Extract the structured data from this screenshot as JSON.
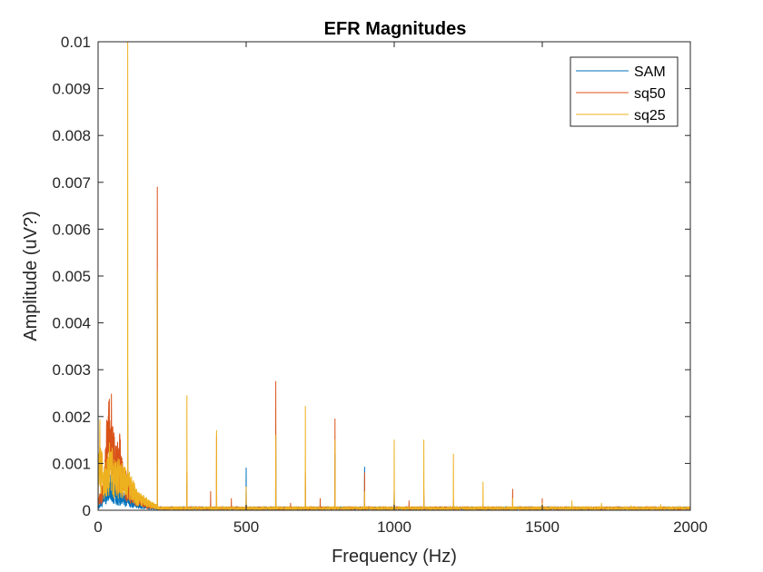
{
  "chart_data": {
    "type": "line",
    "title": "EFR Magnitudes",
    "xlabel": "Frequency (Hz)",
    "ylabel": "Amplitude (uV?)",
    "xlim": [
      0,
      2000
    ],
    "ylim": [
      0,
      0.01
    ],
    "xticks": [
      0,
      500,
      1000,
      1500,
      2000
    ],
    "xtick_labels": [
      "0",
      "500",
      "1000",
      "1500",
      "2000"
    ],
    "yticks": [
      0,
      0.001,
      0.002,
      0.003,
      0.004,
      0.005,
      0.006,
      0.007,
      0.008,
      0.009,
      0.01
    ],
    "ytick_labels": [
      "0",
      "0.001",
      "0.002",
      "0.003",
      "0.004",
      "0.005",
      "0.006",
      "0.007",
      "0.008",
      "0.009",
      "0.01"
    ],
    "grid": false,
    "legend": "top-right",
    "noise_floor": 5e-05,
    "series": [
      {
        "name": "SAM",
        "color": "#0072BD",
        "low_freq_envelope": [
          [
            0,
            0.0001
          ],
          [
            10,
            0.0002
          ],
          [
            20,
            0.0004
          ],
          [
            30,
            0.0006
          ],
          [
            40,
            0.0007
          ],
          [
            50,
            0.0006
          ],
          [
            60,
            0.0005
          ],
          [
            70,
            0.0004
          ],
          [
            80,
            0.0004
          ],
          [
            90,
            0.0003
          ],
          [
            100,
            0.0003
          ],
          [
            120,
            0.0002
          ],
          [
            140,
            0.00015
          ],
          [
            160,
            0.0001
          ],
          [
            200,
            6e-05
          ]
        ],
        "peaks": [
          [
            100,
            0.0028
          ],
          [
            200,
            0.0051
          ],
          [
            300,
            0.0006
          ],
          [
            500,
            0.0009
          ],
          [
            600,
            0.0016
          ],
          [
            700,
            0.0005
          ],
          [
            800,
            0.0012
          ],
          [
            900,
            0.00092
          ],
          [
            1000,
            0.0004
          ],
          [
            1100,
            0.0003
          ]
        ]
      },
      {
        "name": "sq50",
        "color": "#D95319",
        "low_freq_envelope": [
          [
            0,
            0.0002
          ],
          [
            10,
            0.0004
          ],
          [
            20,
            0.0008
          ],
          [
            30,
            0.0018
          ],
          [
            35,
            0.0025
          ],
          [
            40,
            0.0022
          ],
          [
            45,
            0.0024
          ],
          [
            50,
            0.0017
          ],
          [
            60,
            0.0012
          ],
          [
            70,
            0.0016
          ],
          [
            80,
            0.0011
          ],
          [
            90,
            0.0008
          ],
          [
            100,
            0.0007
          ],
          [
            120,
            0.0004
          ],
          [
            140,
            0.0003
          ],
          [
            160,
            0.00015
          ],
          [
            200,
            0.0001
          ]
        ],
        "peaks": [
          [
            100,
            0.0023
          ],
          [
            200,
            0.0069
          ],
          [
            300,
            0.0008
          ],
          [
            380,
            0.0004
          ],
          [
            400,
            0.0016
          ],
          [
            450,
            0.00025
          ],
          [
            500,
            0.0004
          ],
          [
            600,
            0.00275
          ],
          [
            650,
            0.00015
          ],
          [
            700,
            0.0008
          ],
          [
            750,
            0.00025
          ],
          [
            800,
            0.00195
          ],
          [
            900,
            0.0008
          ],
          [
            1000,
            0.00045
          ],
          [
            1050,
            0.0002
          ],
          [
            1100,
            0.00045
          ],
          [
            1200,
            0.0002
          ],
          [
            1400,
            0.00045
          ],
          [
            1500,
            0.00025
          ]
        ]
      },
      {
        "name": "sq25",
        "color": "#EDB120",
        "low_freq_envelope": [
          [
            0,
            0.0004
          ],
          [
            5,
            0.0018
          ],
          [
            10,
            0.0012
          ],
          [
            20,
            0.0009
          ],
          [
            30,
            0.001
          ],
          [
            40,
            0.0014
          ],
          [
            50,
            0.0011
          ],
          [
            60,
            0.0009
          ],
          [
            70,
            0.001
          ],
          [
            80,
            0.0009
          ],
          [
            90,
            0.0008
          ],
          [
            110,
            0.0007
          ],
          [
            130,
            0.0004
          ],
          [
            150,
            0.0003
          ],
          [
            170,
            0.0002
          ],
          [
            200,
            0.0001
          ]
        ],
        "peaks": [
          [
            100,
            0.01
          ],
          [
            200,
            0.0051
          ],
          [
            300,
            0.00245
          ],
          [
            400,
            0.0017
          ],
          [
            500,
            0.0005
          ],
          [
            600,
            0.0016
          ],
          [
            700,
            0.00222
          ],
          [
            800,
            0.0015
          ],
          [
            900,
            0.0004
          ],
          [
            1000,
            0.0015
          ],
          [
            1100,
            0.0015
          ],
          [
            1200,
            0.0012
          ],
          [
            1300,
            0.0006
          ],
          [
            1400,
            0.00025
          ],
          [
            1500,
            0.00015
          ],
          [
            1600,
            0.0002
          ],
          [
            1700,
            0.00015
          ],
          [
            1800,
            0.0001
          ],
          [
            1900,
            0.00012
          ]
        ]
      }
    ]
  }
}
